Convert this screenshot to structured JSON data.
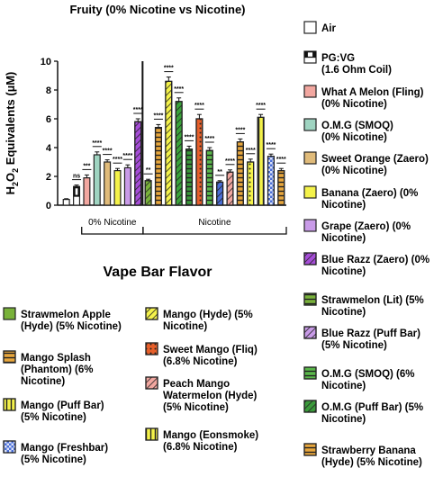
{
  "chart_data": {
    "type": "bar",
    "title": "Fruity (0% Nicotine vs Nicotine)",
    "ylabel": "H2O2 Equivalents (µM)",
    "ylim": [
      0,
      10
    ],
    "yticks": [
      "0",
      "2",
      "4",
      "6",
      "8",
      "10"
    ],
    "x_axis_title": "Vape Bar Flavor",
    "groups": [
      {
        "label": "0% Nicotine",
        "from": 2,
        "to": 7
      },
      {
        "label": "Nicotine",
        "from": 8,
        "to": 21
      }
    ],
    "bars": [
      {
        "name": "Air",
        "value": 0.4,
        "err": 0.05,
        "sig": "",
        "color": "#ffffff",
        "pattern": "none"
      },
      {
        "name": "PG:VG (1.6 Ohm Coil)",
        "value": 1.3,
        "err": 0.1,
        "sig": "ns",
        "color": "#ffffff",
        "pattern": "pgvg"
      },
      {
        "name": "What A Melon (Fling) (0% Nicotine)",
        "value": 1.9,
        "err": 0.2,
        "sig": "***",
        "color": "#f2a7a0",
        "pattern": "none"
      },
      {
        "name": "O.M.G (SMOQ) (0% Nicotine)",
        "value": 3.5,
        "err": 0.2,
        "sig": "****",
        "color": "#9fd4c1",
        "pattern": "none"
      },
      {
        "name": "Sweet Orange (Zaero) (0% Nicotine)",
        "value": 3.0,
        "err": 0.15,
        "sig": "****",
        "color": "#e0bb7a",
        "pattern": "none"
      },
      {
        "name": "Banana (Zaero) (0% Nicotine)",
        "value": 2.4,
        "err": 0.15,
        "sig": "****",
        "color": "#f4f24a",
        "pattern": "none"
      },
      {
        "name": "Grape (Zaero) (0% Nicotine)",
        "value": 2.6,
        "err": 0.2,
        "sig": "****",
        "color": "#c99be8",
        "pattern": "none"
      },
      {
        "name": "Blue Razz (Zaero) (0% Nicotine)",
        "value": 5.8,
        "err": 0.2,
        "sig": "****",
        "color": "#a64dd8",
        "pattern": "diag"
      },
      {
        "name": "Strawmelon Apple (Hyde) (5% Nicotine)",
        "value": 1.7,
        "err": 0.1,
        "sig": "**",
        "color": "#79b23a",
        "pattern": "diag"
      },
      {
        "name": "Mango Splash (Phantom) (6% Nicotine)",
        "value": 5.4,
        "err": 0.2,
        "sig": "****",
        "color": "#e7a63c",
        "pattern": "hline"
      },
      {
        "name": "Mango (Puff Bar) (5% Nicotine)",
        "value": 8.6,
        "err": 0.3,
        "sig": "****",
        "color": "#f4f24a",
        "pattern": "diag"
      },
      {
        "name": "Mango (Freshbar) (5% Nicotine)",
        "value": 7.2,
        "err": 0.25,
        "sig": "****",
        "color": "#3aa33a",
        "pattern": "diag"
      },
      {
        "name": "Mango (Hyde) (5% Nicotine)",
        "value": 3.9,
        "err": 0.2,
        "sig": "****",
        "color": "#3a9a3a",
        "pattern": "hline"
      },
      {
        "name": "Sweet Mango (Fliq) (6.8% Nicotine)",
        "value": 6.0,
        "err": 0.3,
        "sig": "****",
        "color": "#e75f2a",
        "pattern": "dots"
      },
      {
        "name": "Peach Mango Watermelon (Hyde) (5% Nicotine)",
        "value": 3.8,
        "err": 0.2,
        "sig": "****",
        "color": "#5ab84a",
        "pattern": "hline"
      },
      {
        "name": "Mango (Eonsmoke) (6.8% Nicotine)",
        "value": 1.6,
        "err": 0.1,
        "sig": "**",
        "color": "#4a6fd8",
        "pattern": "diag"
      },
      {
        "name": "Strawmelon (Lit) (5% Nicotine)",
        "value": 2.3,
        "err": 0.15,
        "sig": "****",
        "color": "#f2a7a0",
        "pattern": "diag"
      },
      {
        "name": "Blue Razz (Puff Bar) (5% Nicotine)",
        "value": 4.4,
        "err": 0.2,
        "sig": "****",
        "color": "#e7a63c",
        "pattern": "hline"
      },
      {
        "name": "O.M.G (SMOQ) (6% Nicotine)",
        "value": 3.0,
        "err": 0.2,
        "sig": "****",
        "color": "#f4f24a",
        "pattern": "dots"
      },
      {
        "name": "O.M.G (Puff Bar) (5% Nicotine)",
        "value": 6.1,
        "err": 0.2,
        "sig": "****",
        "color": "#f4f24a",
        "pattern": "vline"
      },
      {
        "name": "Strawberry Banana (Hyde) (5% Nicotine)",
        "value": 3.4,
        "err": 0.15,
        "sig": "****",
        "color": "#4a6fd8",
        "pattern": "grid"
      },
      {
        "name": "",
        "value": 2.4,
        "err": 0.15,
        "sig": "****",
        "color": "#e7a63c",
        "pattern": "hline"
      }
    ],
    "legend_right": [
      {
        "label": "Air",
        "color": "#ffffff",
        "pattern": "none"
      },
      {
        "label": "PG:VG\n(1.6 Ohm Coil)",
        "color": "#ffffff",
        "pattern": "pgvg"
      },
      {
        "label": "What A Melon (Fling)\n(0% Nicotine)",
        "color": "#f2a7a0",
        "pattern": "none"
      },
      {
        "label": "O.M.G (SMOQ)\n(0% Nicotine)",
        "color": "#9fd4c1",
        "pattern": "none"
      },
      {
        "label": "Sweet Orange (Zaero)\n(0% Nicotine)",
        "color": "#e0bb7a",
        "pattern": "none"
      },
      {
        "label": "Banana (Zaero) (0%\nNicotine)",
        "color": "#f4f24a",
        "pattern": "none"
      },
      {
        "label": "Grape (Zaero) (0%\nNicotine)",
        "color": "#c99be8",
        "pattern": "none"
      },
      {
        "label": "Blue Razz (Zaero) (0%\nNicotine)",
        "color": "#a64dd8",
        "pattern": "diag"
      },
      {
        "label": "Strawmelon (Lit) (5%\nNicotine)",
        "color": "#79b23a",
        "pattern": "hline"
      },
      {
        "label": "Blue Razz (Puff Bar)\n(5% Nicotine)",
        "color": "#c99be8",
        "pattern": "diag"
      },
      {
        "label": "O.M.G (SMOQ) (6%\nNicotine)",
        "color": "#5ab84a",
        "pattern": "hline"
      },
      {
        "label": "O.M.G (Puff Bar) (5%\nNicotine)",
        "color": "#3a9a3a",
        "pattern": "diag"
      },
      {
        "label": "Strawberry Banana\n(Hyde) (5% Nicotine)",
        "color": "#e7a63c",
        "pattern": "hline"
      }
    ],
    "legend_col1": [
      {
        "label": "Strawmelon Apple\n(Hyde) (5% Nicotine)",
        "color": "#79b23a",
        "pattern": "none"
      },
      {
        "label": "Mango Splash\n(Phantom) (6%\nNicotine)",
        "color": "#e7a63c",
        "pattern": "hline"
      },
      {
        "label": "Mango (Puff Bar)\n(5% Nicotine)",
        "color": "#f4f24a",
        "pattern": "vline"
      },
      {
        "label": "Mango (Freshbar)\n(5% Nicotine)",
        "color": "#4a6fd8",
        "pattern": "grid"
      }
    ],
    "legend_col2": [
      {
        "label": "Mango (Hyde) (5%\nNicotine)",
        "color": "#f4f24a",
        "pattern": "diag"
      },
      {
        "label": "Sweet Mango (Fliq)\n(6.8% Nicotine)",
        "color": "#e75f2a",
        "pattern": "dots"
      },
      {
        "label": "Peach Mango\nWatermelon (Hyde)\n(5% Nicotine)",
        "color": "#f2a7a0",
        "pattern": "diag"
      },
      {
        "label": "Mango (Eonsmoke)\n(6.8% Nicotine)",
        "color": "#f4f24a",
        "pattern": "vline"
      }
    ]
  }
}
